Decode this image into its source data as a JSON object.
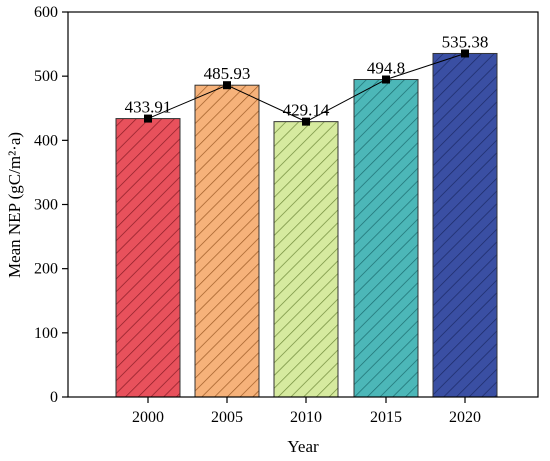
{
  "chart_data": {
    "type": "bar",
    "categories": [
      "2000",
      "2005",
      "2010",
      "2015",
      "2020"
    ],
    "values": [
      433.91,
      485.93,
      429.14,
      494.8,
      535.38
    ],
    "data_labels": [
      "433.91",
      "485.93",
      "429.14",
      "494.8",
      "535.38"
    ],
    "xlabel": "Year",
    "ylabel": "Mean NEP (gC/m²·a)",
    "ylim": [
      0,
      600
    ],
    "yticks": [
      0,
      100,
      200,
      300,
      400,
      500,
      600
    ],
    "grid": false,
    "hatch": "diagonal",
    "overlay": {
      "type": "line",
      "marker": "square",
      "color": "#000000"
    },
    "colors": {
      "fill": [
        "#e8515c",
        "#f6b27a",
        "#d6ea9f",
        "#4cb7b8",
        "#3a4fa3"
      ],
      "hatch": [
        "#8a1c26",
        "#9c5a25",
        "#6f8a3a",
        "#1c6d70",
        "#1c2a66"
      ]
    }
  }
}
